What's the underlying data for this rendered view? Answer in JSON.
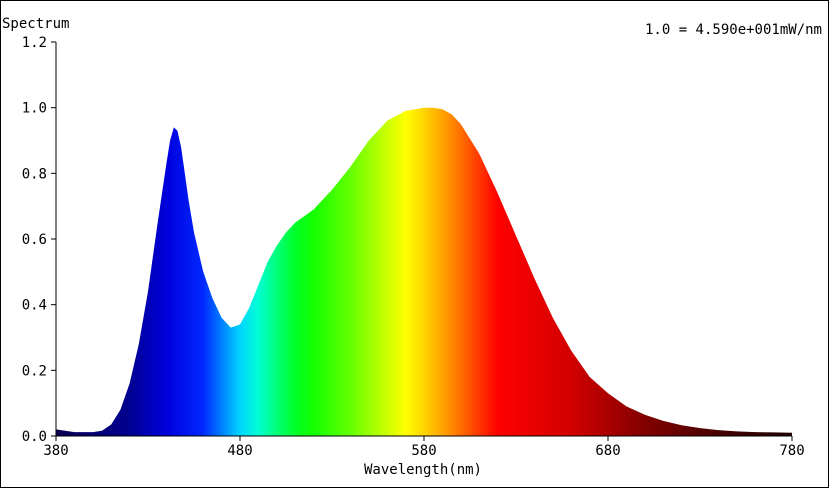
{
  "chart_data": {
    "type": "area",
    "title": "Spectrum",
    "scale_note": "1.0 = 4.590e+001mW/nm",
    "xlabel": "Wavelength(nm)",
    "ylabel": "",
    "xlim": [
      380,
      780
    ],
    "ylim": [
      0,
      1.2
    ],
    "x_ticks": [
      380,
      480,
      580,
      680,
      780
    ],
    "x_tick_labels": [
      "380",
      "480",
      "580",
      "680",
      "780"
    ],
    "y_ticks": [
      0,
      0.2,
      0.4,
      0.6,
      0.8,
      1.0,
      1.2
    ],
    "y_tick_labels": [
      "0.0",
      "0.2",
      "0.4",
      "0.6",
      "0.8",
      "1.0",
      "1.2"
    ],
    "grid": false,
    "fill": "wavelength-rainbow",
    "series": [
      {
        "x": [
          380,
          390,
          400,
          405,
          410,
          415,
          420,
          425,
          430,
          435,
          440,
          442,
          444,
          446,
          448,
          450,
          452,
          455,
          460,
          465,
          470,
          475,
          480,
          485,
          490,
          495,
          500,
          505,
          510,
          520,
          530,
          540,
          550,
          560,
          570,
          580,
          585,
          590,
          595,
          600,
          610,
          620,
          630,
          640,
          650,
          660,
          670,
          680,
          690,
          700,
          710,
          720,
          730,
          740,
          750,
          760,
          770,
          780
        ],
        "y": [
          0.02,
          0.012,
          0.012,
          0.016,
          0.035,
          0.08,
          0.16,
          0.28,
          0.44,
          0.64,
          0.83,
          0.9,
          0.94,
          0.93,
          0.88,
          0.8,
          0.72,
          0.62,
          0.5,
          0.42,
          0.36,
          0.33,
          0.34,
          0.39,
          0.46,
          0.53,
          0.58,
          0.62,
          0.65,
          0.69,
          0.75,
          0.82,
          0.9,
          0.96,
          0.99,
          1.0,
          1.0,
          0.995,
          0.98,
          0.95,
          0.86,
          0.74,
          0.61,
          0.48,
          0.36,
          0.26,
          0.18,
          0.13,
          0.09,
          0.065,
          0.046,
          0.033,
          0.024,
          0.018,
          0.014,
          0.012,
          0.011,
          0.01
        ]
      }
    ]
  }
}
